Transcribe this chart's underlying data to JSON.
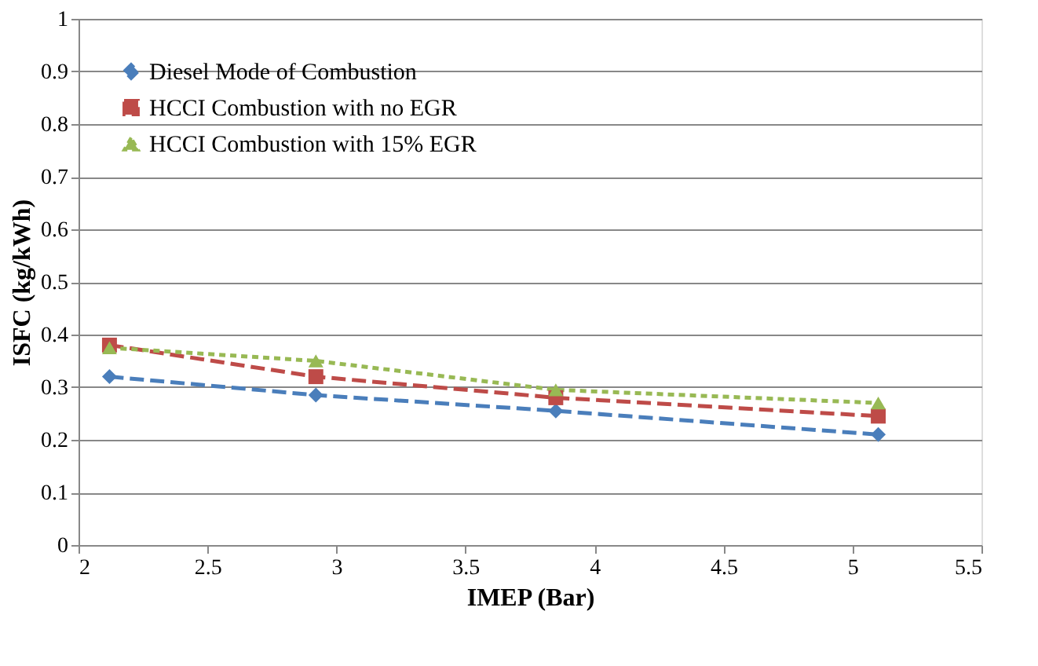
{
  "chart_data": {
    "type": "line",
    "xlabel": "IMEP (Bar)",
    "ylabel": "ISFC (kg/kWh)",
    "x": [
      2.12,
      2.92,
      3.85,
      5.1
    ],
    "series": [
      {
        "name": "Diesel Mode of Combustion",
        "color": "#4a7ebb",
        "values": [
          0.32,
          0.285,
          0.255,
          0.21
        ],
        "marker": "diamond",
        "line_style": "dashed"
      },
      {
        "name": "HCCI Combustion with no EGR",
        "color": "#be4b48",
        "values": [
          0.38,
          0.32,
          0.28,
          0.245
        ],
        "marker": "square",
        "line_style": "dashed"
      },
      {
        "name": "HCCI Combustion with 15% EGR",
        "color": "#98b954",
        "values": [
          0.375,
          0.35,
          0.295,
          0.27
        ],
        "marker": "triangle",
        "line_style": "dotted"
      }
    ],
    "xlim": [
      2,
      5.5
    ],
    "xticks": [
      2,
      2.5,
      3,
      3.5,
      4,
      4.5,
      5,
      5.5
    ],
    "ylim": [
      0,
      1
    ],
    "yticks": [
      0,
      0.1,
      0.2,
      0.3,
      0.4,
      0.5,
      0.6,
      0.7,
      0.8,
      0.9,
      1
    ],
    "grid": "y",
    "legend": "top left"
  }
}
